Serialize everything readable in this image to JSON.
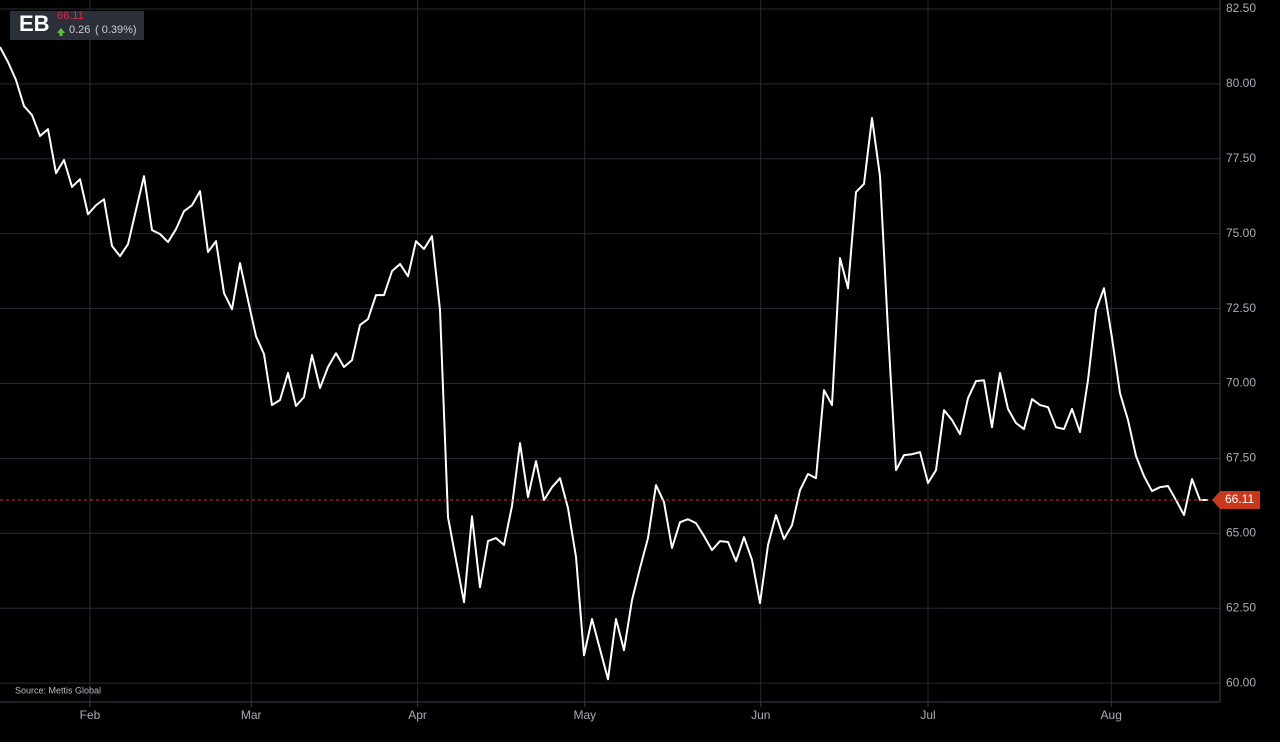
{
  "ticker": "EB",
  "price": 66.11,
  "change": 0.26,
  "change_pct": "( 0.39%)",
  "source": "Source: Mettis Global",
  "chart_data": {
    "type": "line",
    "color": "#ffffff",
    "grid": true,
    "last_value": 66.11,
    "last_color": "#c8381c",
    "values": [
      81.23,
      80.73,
      80.13,
      79.26,
      78.96,
      78.26,
      78.49,
      77.02,
      77.46,
      76.56,
      76.82,
      75.65,
      75.95,
      76.15,
      74.59,
      74.25,
      74.65,
      75.79,
      76.92,
      75.12,
      74.99,
      74.72,
      75.15,
      75.75,
      75.95,
      76.42,
      74.39,
      74.75,
      73.02,
      72.48,
      74.02,
      72.78,
      71.58,
      70.98,
      69.28,
      69.45,
      70.35,
      69.25,
      69.55,
      70.95,
      69.85,
      70.55,
      71.01,
      70.55,
      70.78,
      71.95,
      72.15,
      72.95,
      72.95,
      73.75,
      73.99,
      73.58,
      74.75,
      74.49,
      74.92,
      72.45,
      65.54,
      64.11,
      62.7,
      65.57,
      63.2,
      64.74,
      64.84,
      64.61,
      65.91,
      68.01,
      66.21,
      67.41,
      66.11,
      66.54,
      66.84,
      65.84,
      64.21,
      60.93,
      62.14,
      61.13,
      60.13,
      62.14,
      61.1,
      62.77,
      63.84,
      64.84,
      66.61,
      66.04,
      64.51,
      65.37,
      65.47,
      65.34,
      64.91,
      64.44,
      64.74,
      64.71,
      64.07,
      64.87,
      64.11,
      62.67,
      64.61,
      65.61,
      64.81,
      65.27,
      66.44,
      66.98,
      66.84,
      69.78,
      69.28,
      74.19,
      73.18,
      76.39,
      76.66,
      78.86,
      76.92,
      71.78,
      67.11,
      67.61,
      67.64,
      67.71,
      66.68,
      67.11,
      69.11,
      68.78,
      68.31,
      69.51,
      70.08,
      70.11,
      68.54,
      70.35,
      69.15,
      68.68,
      68.48,
      69.48,
      69.28,
      69.21,
      68.54,
      68.48,
      69.15,
      68.38,
      70.11,
      72.45,
      73.18,
      71.52,
      69.68,
      68.78,
      67.58,
      66.91,
      66.41,
      66.54,
      66.58,
      66.11,
      65.61,
      66.81,
      66.11,
      66.11
    ],
    "xlim": [
      0,
      152.5
    ],
    "xticks": [
      {
        "value": 11.25,
        "label": "Feb"
      },
      {
        "value": 31.4,
        "label": "Mar"
      },
      {
        "value": 52.2,
        "label": "Apr"
      },
      {
        "value": 73.1,
        "label": "May"
      },
      {
        "value": 95.1,
        "label": "Jun"
      },
      {
        "value": 116,
        "label": "Jul"
      },
      {
        "value": 138.9,
        "label": "Aug"
      }
    ],
    "ylim": [
      59.37,
      82.8
    ],
    "yticks": [
      {
        "value": 60,
        "label": "60.00"
      },
      {
        "value": 62.5,
        "label": "62.50"
      },
      {
        "value": 65,
        "label": "65.00"
      },
      {
        "value": 67.5,
        "label": "67.50"
      },
      {
        "value": 70,
        "label": "70.00"
      },
      {
        "value": 72.5,
        "label": "72.50"
      },
      {
        "value": 75,
        "label": "75.00"
      },
      {
        "value": 77.5,
        "label": "77.50"
      },
      {
        "value": 80,
        "label": "80.00"
      },
      {
        "value": 82.5,
        "label": "82.50"
      }
    ]
  }
}
